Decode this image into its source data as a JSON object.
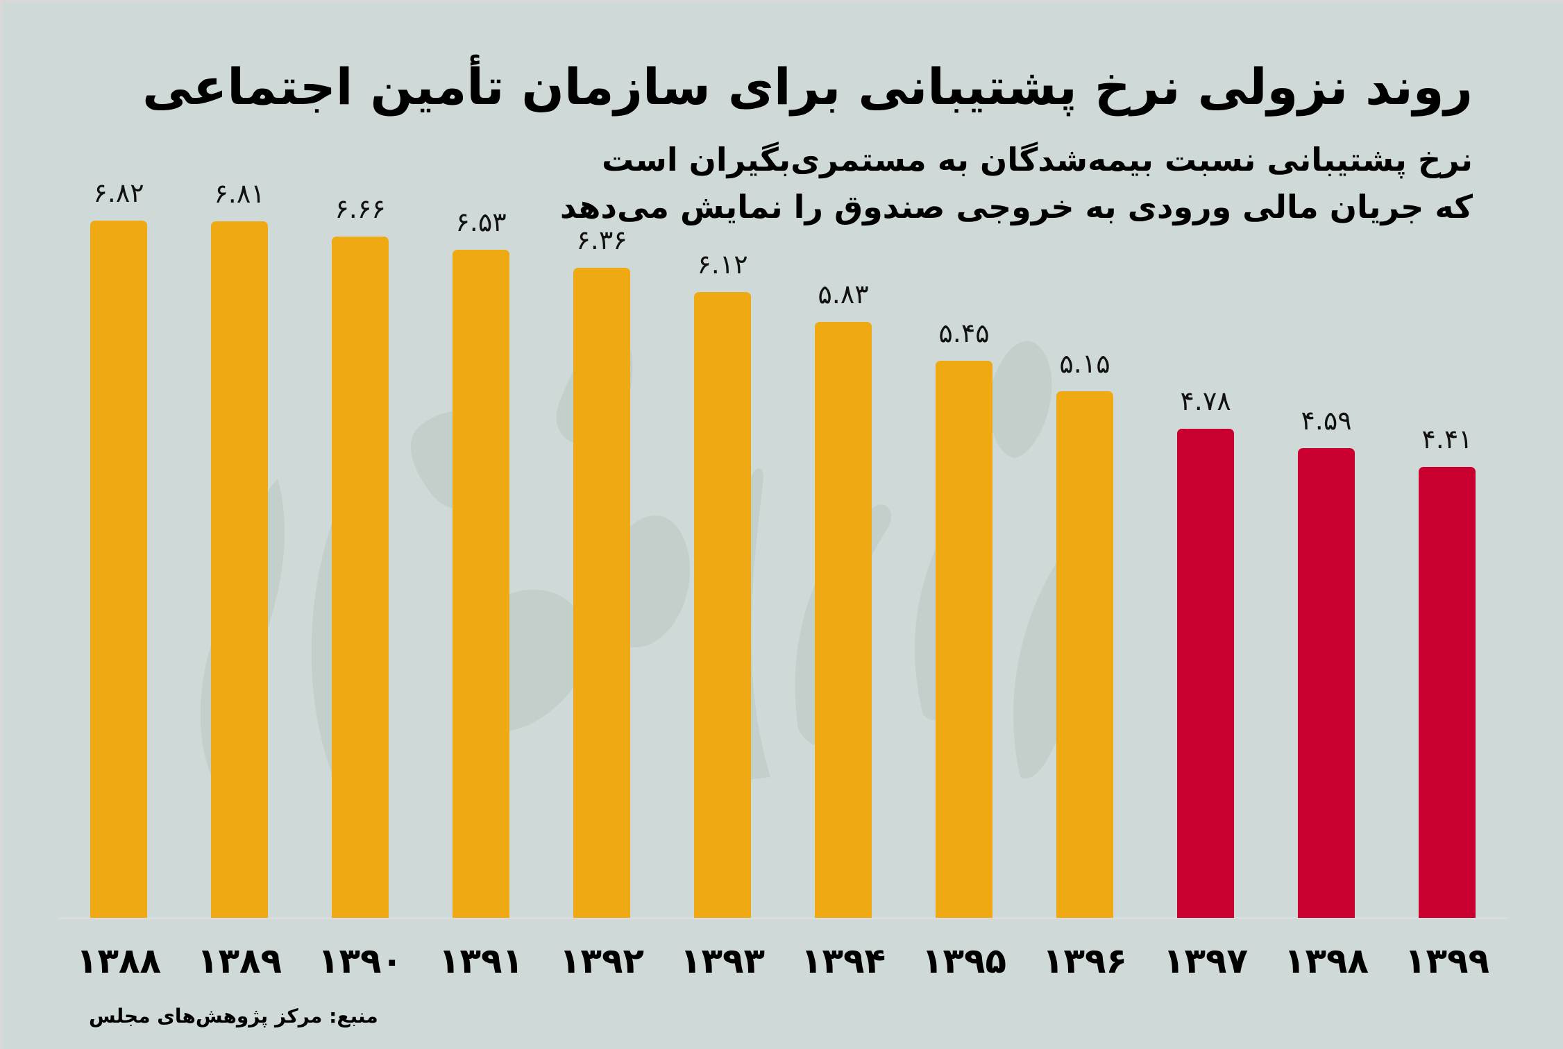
{
  "header": {
    "title": "روند نزولی نرخ پشتیبانی برای سازمان تأمین اجتماعی",
    "subtitle_line1": "نرخ پشتیبانی نسبت بیمه‌شدگان به مستمری‌بگیران است",
    "subtitle_line2": "که جریان مالی ورودی به خروجی صندوق را نمایش می‌دهد"
  },
  "footer": {
    "source": "منبع: مرکز پژوهش‌های مجلس"
  },
  "colors": {
    "background": "#cfd9d7",
    "bar_normal": "#eea913",
    "bar_highlight": "#c9002f"
  },
  "chart_data": {
    "type": "bar",
    "title": "روند نزولی نرخ پشتیبانی برای سازمان تأمین اجتماعی",
    "subtitle": "نرخ پشتیبانی نسبت بیمه‌شدگان به مستمری‌بگیران است که جریان مالی ورودی به خروجی صندوق را نمایش می‌دهد",
    "xlabel": "",
    "ylabel": "",
    "categories": [
      "1388",
      "1389",
      "1390",
      "1391",
      "1392",
      "1393",
      "1394",
      "1395",
      "1396",
      "1397",
      "1398",
      "1399"
    ],
    "category_labels": [
      "۱۳۸۸",
      "۱۳۸۹",
      "۱۳۹۰",
      "۱۳۹۱",
      "۱۳۹۲",
      "۱۳۹۳",
      "۱۳۹۴",
      "۱۳۹۵",
      "۱۳۹۶",
      "۱۳۹۷",
      "۱۳۹۸",
      "۱۳۹۹"
    ],
    "values": [
      6.82,
      6.81,
      6.66,
      6.53,
      6.36,
      6.12,
      5.83,
      5.45,
      5.15,
      4.78,
      4.59,
      4.41
    ],
    "value_labels": [
      "۶.۸۲",
      "۶.۸۱",
      "۶.۶۶",
      "۶.۵۳",
      "۶.۳۶",
      "۶.۱۲",
      "۵.۸۳",
      "۵.۴۵",
      "۵.۱۵",
      "۴.۷۸",
      "۴.۵۹",
      "۴.۴۱"
    ],
    "highlighted": [
      false,
      false,
      false,
      false,
      false,
      false,
      false,
      false,
      false,
      true,
      true,
      true
    ],
    "ylim": [
      0,
      7
    ],
    "grid": false,
    "legend": null,
    "source": "منبع: مرکز پژوهش‌های مجلس"
  }
}
